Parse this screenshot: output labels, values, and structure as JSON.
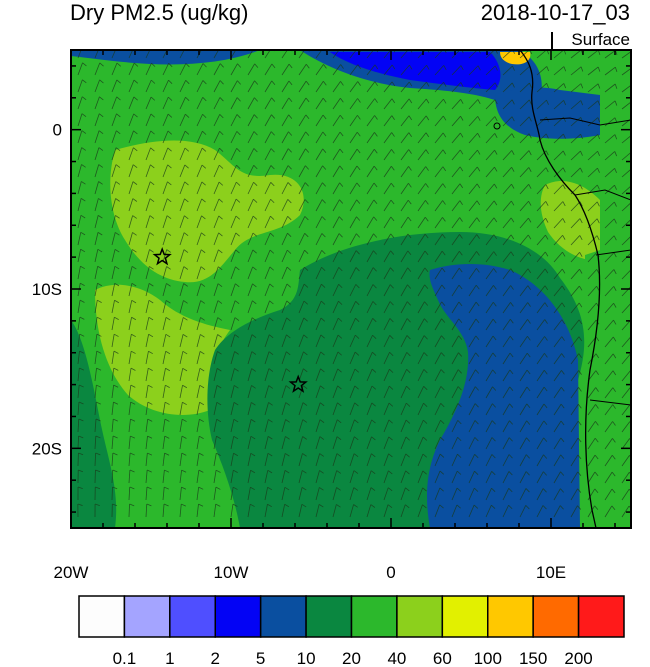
{
  "title": "Dry PM2.5 (ug/kg)",
  "datetime": "2018-10-17_03",
  "level": "Surface",
  "x_ticks": [
    {
      "label": "20W",
      "lon": -20
    },
    {
      "label": "10W",
      "lon": -10
    },
    {
      "label": "0",
      "lon": 0
    },
    {
      "label": "10E",
      "lon": 10
    }
  ],
  "y_ticks": [
    {
      "label": "0",
      "lat": 0
    },
    {
      "label": "10S",
      "lat": -10
    },
    {
      "label": "20S",
      "lat": -20
    }
  ],
  "colorbar": {
    "colors": [
      "#fdfdfd",
      "#a4a4ff",
      "#4f4fff",
      "#0303f5",
      "#0a4fa0",
      "#0a8740",
      "#2cb82c",
      "#8cd01c",
      "#e2f000",
      "#ffc800",
      "#ff6a00",
      "#ff1a1a"
    ],
    "labels": [
      "0.1",
      "1",
      "2",
      "5",
      "10",
      "20",
      "40",
      "60",
      "100",
      "150",
      "200"
    ]
  },
  "markers": [
    {
      "name": "star-marker-1",
      "lon": -14.3,
      "lat": -8.0
    },
    {
      "name": "star-marker-2",
      "lon": -5.8,
      "lat": -16.0
    }
  ],
  "field_colors": {
    "light": "#8cd01c",
    "mid": "#2cb82c",
    "dark": "#0a8740",
    "navy": "#0a4fa0",
    "blue": "#0303f5"
  }
}
